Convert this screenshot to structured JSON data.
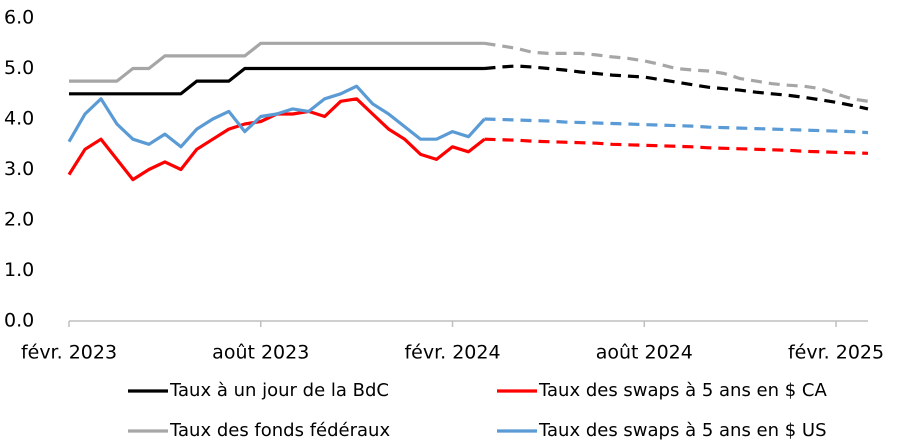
{
  "chart_data": {
    "type": "line",
    "categories": [
      "févr. 2023",
      null,
      null,
      null,
      null,
      null,
      null,
      null,
      null,
      null,
      null,
      null,
      "août 2023",
      null,
      null,
      null,
      null,
      null,
      null,
      null,
      null,
      null,
      null,
      null,
      "févr. 2024",
      null,
      null,
      null,
      null,
      null,
      null,
      null,
      null,
      null,
      null,
      null,
      "août 2024",
      null,
      null,
      null,
      null,
      null,
      null,
      null,
      null,
      null,
      null,
      null,
      "févr. 2025",
      null,
      null
    ],
    "ylim": [
      0,
      6
    ],
    "yticks": [
      {
        "value": 0,
        "label": "0.0"
      },
      {
        "value": 1,
        "label": "1.0"
      },
      {
        "value": 2,
        "label": "2.0"
      },
      {
        "value": 3,
        "label": "3.0"
      },
      {
        "value": 4,
        "label": "4.0"
      },
      {
        "value": 5,
        "label": "5.0"
      },
      {
        "value": 6,
        "label": "6.0"
      }
    ],
    "grid": false,
    "series": [
      {
        "name": "Taux à un jour de la BdC",
        "color": "#000000",
        "values": [
          4.5,
          4.5,
          4.5,
          4.5,
          4.5,
          4.5,
          4.5,
          4.5,
          4.75,
          4.75,
          4.75,
          5.0,
          5.0,
          5.0,
          5.0,
          5.0,
          5.0,
          5.0,
          5.0,
          5.0,
          5.0,
          5.0,
          5.0,
          5.0,
          5.0,
          5.0,
          5.0,
          null,
          null,
          null,
          null,
          null,
          null,
          null,
          null,
          null,
          null,
          null,
          null,
          null,
          null,
          null,
          null,
          null,
          null,
          null,
          null,
          null,
          null,
          null,
          null
        ],
        "forecast": [
          null,
          null,
          null,
          null,
          null,
          null,
          null,
          null,
          null,
          null,
          null,
          null,
          null,
          null,
          null,
          null,
          null,
          null,
          null,
          null,
          null,
          null,
          null,
          null,
          null,
          null,
          5.0,
          5.03,
          5.05,
          5.03,
          5.0,
          4.97,
          4.93,
          4.9,
          4.87,
          4.85,
          4.83,
          4.78,
          4.73,
          4.68,
          4.63,
          4.6,
          4.57,
          4.53,
          4.5,
          4.47,
          4.43,
          4.38,
          4.33,
          4.27,
          4.2
        ]
      },
      {
        "name": "Taux des swaps à 5 ans en $ CA",
        "color": "#ff0000",
        "values": [
          2.9,
          3.4,
          3.6,
          3.2,
          2.8,
          3.0,
          3.15,
          3.0,
          3.4,
          3.6,
          3.8,
          3.9,
          3.95,
          4.1,
          4.1,
          4.15,
          4.05,
          4.35,
          4.4,
          4.1,
          3.8,
          3.6,
          3.3,
          3.2,
          3.45,
          3.35,
          3.6,
          null,
          null,
          null,
          null,
          null,
          null,
          null,
          null,
          null,
          null,
          null,
          null,
          null,
          null,
          null,
          null,
          null,
          null,
          null,
          null,
          null,
          null,
          null,
          null
        ],
        "forecast": [
          null,
          null,
          null,
          null,
          null,
          null,
          null,
          null,
          null,
          null,
          null,
          null,
          null,
          null,
          null,
          null,
          null,
          null,
          null,
          null,
          null,
          null,
          null,
          null,
          null,
          null,
          3.6,
          3.59,
          3.58,
          3.56,
          3.55,
          3.54,
          3.53,
          3.52,
          3.5,
          3.49,
          3.48,
          3.47,
          3.46,
          3.45,
          3.43,
          3.42,
          3.41,
          3.4,
          3.39,
          3.38,
          3.36,
          3.35,
          3.34,
          3.33,
          3.32
        ]
      },
      {
        "name": "Taux des fonds fédéraux",
        "color": "#a6a6a6",
        "values": [
          4.75,
          4.75,
          4.75,
          4.75,
          5.0,
          5.0,
          5.25,
          5.25,
          5.25,
          5.25,
          5.25,
          5.25,
          5.5,
          5.5,
          5.5,
          5.5,
          5.5,
          5.5,
          5.5,
          5.5,
          5.5,
          5.5,
          5.5,
          5.5,
          5.5,
          5.5,
          5.5,
          null,
          null,
          null,
          null,
          null,
          null,
          null,
          null,
          null,
          null,
          null,
          null,
          null,
          null,
          null,
          null,
          null,
          null,
          null,
          null,
          null,
          null,
          null,
          null
        ],
        "forecast": [
          null,
          null,
          null,
          null,
          null,
          null,
          null,
          null,
          null,
          null,
          null,
          null,
          null,
          null,
          null,
          null,
          null,
          null,
          null,
          null,
          null,
          null,
          null,
          null,
          null,
          null,
          5.5,
          5.45,
          5.4,
          5.32,
          5.3,
          5.3,
          5.3,
          5.27,
          5.23,
          5.2,
          5.15,
          5.08,
          5.0,
          4.97,
          4.95,
          4.9,
          4.8,
          4.75,
          4.7,
          4.67,
          4.65,
          4.6,
          4.5,
          4.4,
          4.35
        ]
      },
      {
        "name": "Taux des swaps à 5 ans en $ US",
        "color": "#5b9bd5",
        "values": [
          3.55,
          4.1,
          4.4,
          3.9,
          3.6,
          3.5,
          3.7,
          3.45,
          3.8,
          4.0,
          4.15,
          3.75,
          4.05,
          4.1,
          4.2,
          4.15,
          4.4,
          4.5,
          4.65,
          4.3,
          4.1,
          3.85,
          3.6,
          3.6,
          3.75,
          3.65,
          4.0,
          null,
          null,
          null,
          null,
          null,
          null,
          null,
          null,
          null,
          null,
          null,
          null,
          null,
          null,
          null,
          null,
          null,
          null,
          null,
          null,
          null,
          null,
          null,
          null
        ],
        "forecast": [
          null,
          null,
          null,
          null,
          null,
          null,
          null,
          null,
          null,
          null,
          null,
          null,
          null,
          null,
          null,
          null,
          null,
          null,
          null,
          null,
          null,
          null,
          null,
          null,
          null,
          null,
          4.0,
          3.99,
          3.98,
          3.97,
          3.96,
          3.94,
          3.93,
          3.92,
          3.91,
          3.9,
          3.89,
          3.88,
          3.87,
          3.86,
          3.84,
          3.83,
          3.82,
          3.81,
          3.8,
          3.79,
          3.78,
          3.77,
          3.76,
          3.75,
          3.73
        ]
      }
    ]
  }
}
